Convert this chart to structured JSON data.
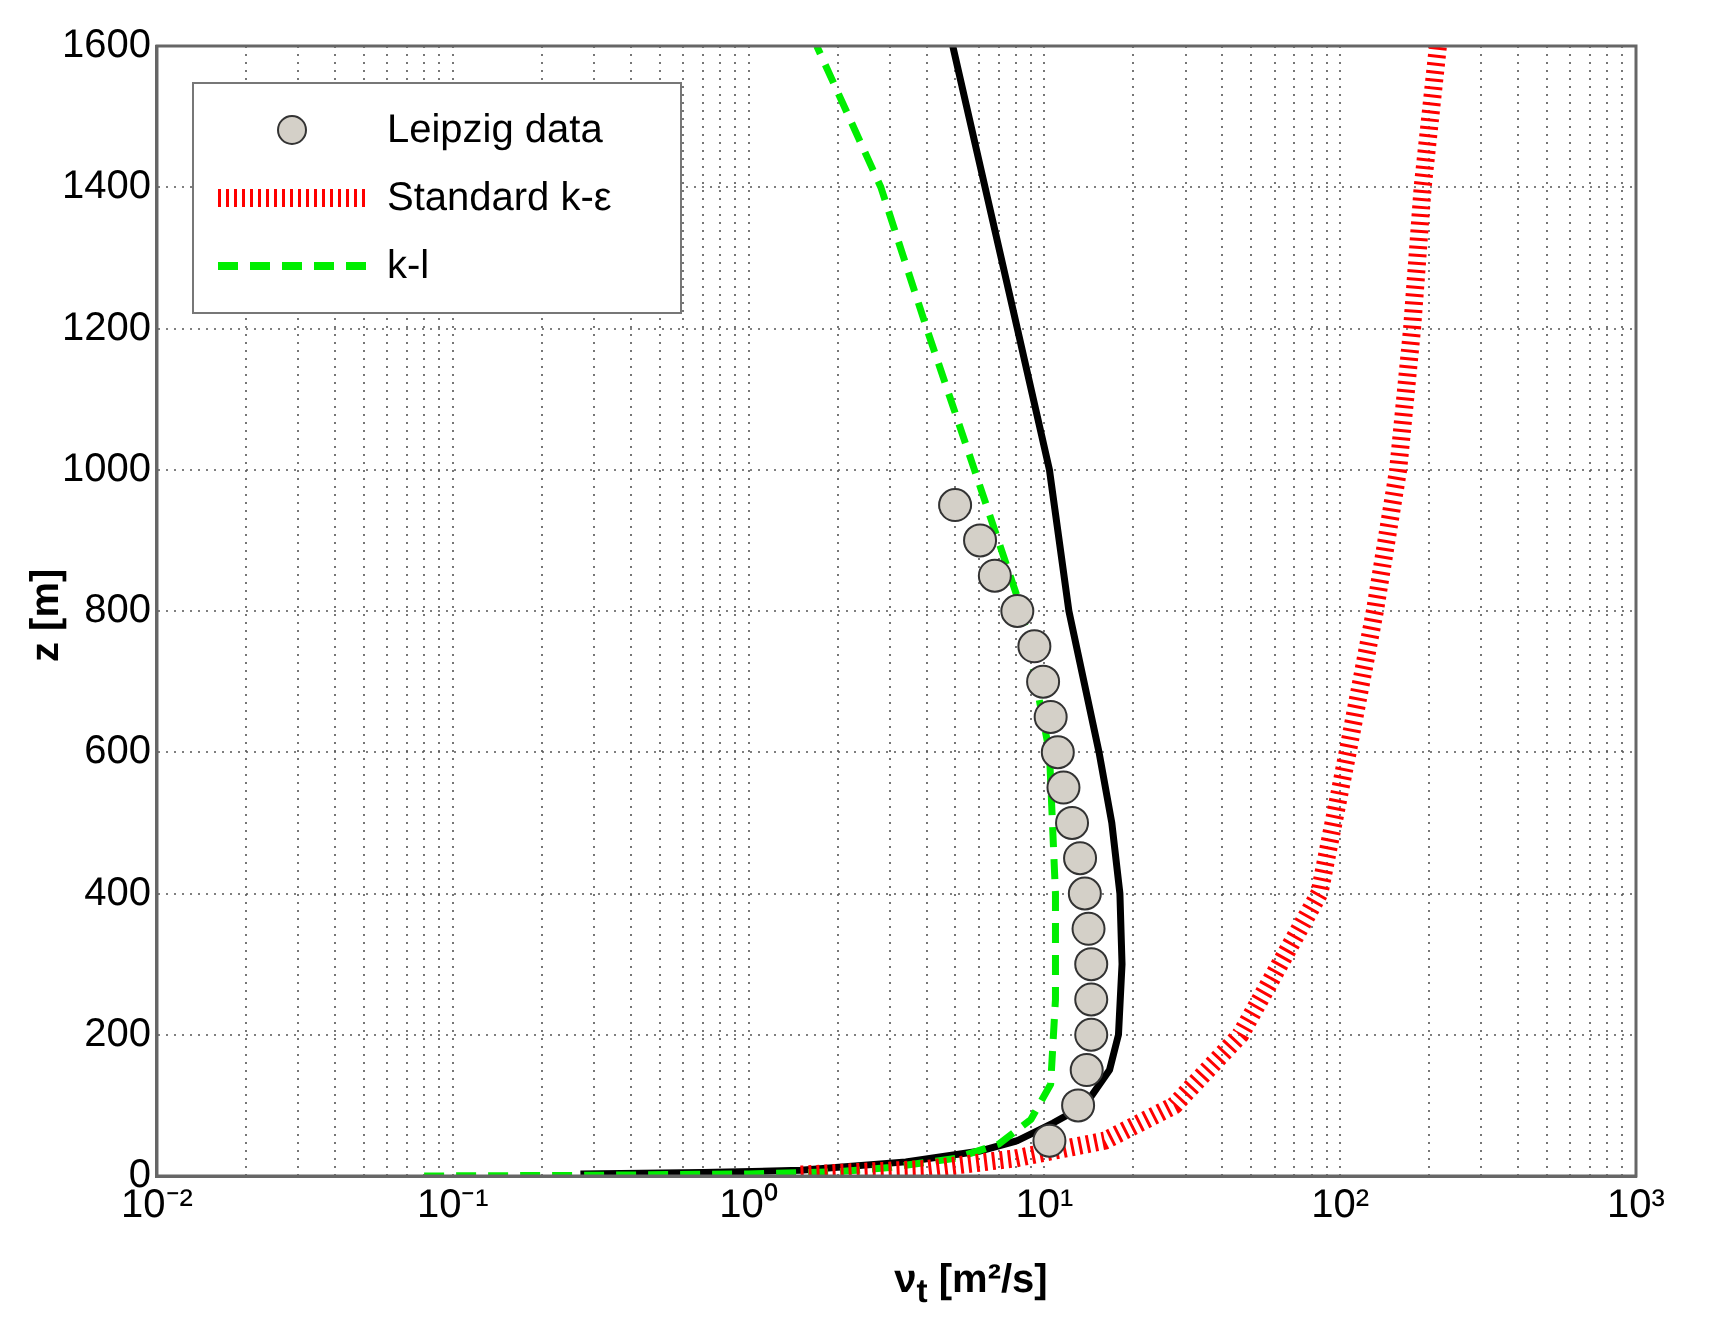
{
  "chart_data": {
    "type": "line",
    "xlabel": "ν$_{t}$ [m²/s]",
    "ylabel": "z [m]",
    "log": "x",
    "grid": true,
    "legend": "top left",
    "xlim": [
      0.01,
      1000
    ],
    "ylim": [
      0,
      1600
    ],
    "xticks": [
      {
        "value": 0.01,
        "label": "10⁻²"
      },
      {
        "value": 0.02,
        "label": null
      },
      {
        "value": 0.03,
        "label": null
      },
      {
        "value": 0.04,
        "label": null
      },
      {
        "value": 0.05,
        "label": null
      },
      {
        "value": 0.06,
        "label": null
      },
      {
        "value": 0.07,
        "label": null
      },
      {
        "value": 0.08,
        "label": null
      },
      {
        "value": 0.09,
        "label": null
      },
      {
        "value": 0.1,
        "label": "10⁻¹"
      },
      {
        "value": 0.2,
        "label": null
      },
      {
        "value": 0.3,
        "label": null
      },
      {
        "value": 0.4,
        "label": null
      },
      {
        "value": 0.5,
        "label": null
      },
      {
        "value": 0.6,
        "label": null
      },
      {
        "value": 0.7,
        "label": null
      },
      {
        "value": 0.8,
        "label": null
      },
      {
        "value": 0.9,
        "label": null
      },
      {
        "value": 1,
        "label": "10⁰"
      },
      {
        "value": 2,
        "label": null
      },
      {
        "value": 3,
        "label": null
      },
      {
        "value": 4,
        "label": null
      },
      {
        "value": 5,
        "label": null
      },
      {
        "value": 6,
        "label": null
      },
      {
        "value": 7,
        "label": null
      },
      {
        "value": 8,
        "label": null
      },
      {
        "value": 9,
        "label": null
      },
      {
        "value": 10,
        "label": "10¹"
      },
      {
        "value": 20,
        "label": null
      },
      {
        "value": 30,
        "label": null
      },
      {
        "value": 40,
        "label": null
      },
      {
        "value": 50,
        "label": null
      },
      {
        "value": 60,
        "label": null
      },
      {
        "value": 70,
        "label": null
      },
      {
        "value": 80,
        "label": null
      },
      {
        "value": 90,
        "label": null
      },
      {
        "value": 100,
        "label": "10²"
      },
      {
        "value": 200,
        "label": null
      },
      {
        "value": 300,
        "label": null
      },
      {
        "value": 400,
        "label": null
      },
      {
        "value": 500,
        "label": null
      },
      {
        "value": 600,
        "label": null
      },
      {
        "value": 700,
        "label": null
      },
      {
        "value": 800,
        "label": null
      },
      {
        "value": 900,
        "label": null
      },
      {
        "value": 1000,
        "label": "10³"
      }
    ],
    "yticks": [
      0,
      200,
      400,
      600,
      800,
      1000,
      1200,
      1400,
      1600
    ],
    "series": [
      {
        "name": "Leipzig data",
        "type": "scatter",
        "marker": "circle",
        "color": "#d4d0c8",
        "x": [
          10.4,
          13.0,
          13.9,
          14.4,
          14.4,
          14.4,
          14.1,
          13.7,
          13.2,
          12.4,
          11.6,
          11.1,
          10.5,
          9.9,
          9.25,
          8.1,
          6.8,
          6.06,
          4.99
        ],
        "values": [
          50,
          100,
          150,
          200,
          250,
          300,
          350,
          400,
          450,
          500,
          550,
          600,
          650,
          700,
          750,
          800,
          850,
          900,
          950
        ]
      },
      {
        "name": "Standard k-ε",
        "line_style": "dotted",
        "color": "#ff0000",
        "x": [
          1.5,
          4,
          8,
          16,
          27.5,
          46,
          85,
          106,
          131,
          157,
          175,
          190,
          214
        ],
        "values": [
          2,
          10,
          25,
          50,
          100,
          200,
          400,
          600,
          800,
          1000,
          1200,
          1400,
          1600
        ]
      },
      {
        "name": "k-l",
        "line_style": "dashed",
        "color": "#00ee00",
        "x": [
          0.08,
          0.3,
          1,
          2,
          3,
          5,
          7,
          9,
          10.5,
          10.9,
          10.9,
          10.4,
          8.4,
          5.8,
          4.0,
          2.8,
          1.7
        ],
        "values": [
          0,
          1,
          3,
          6,
          12,
          25,
          45,
          80,
          130,
          250,
          400,
          600,
          800,
          1000,
          1200,
          1400,
          1600
        ]
      },
      {
        "line_style": "solid",
        "color": "#000000",
        "x": [
          0.27,
          0.7,
          1.5,
          3.4,
          6,
          8.1,
          10.7,
          13.7,
          16.6,
          17.8,
          18.3,
          18,
          16.9,
          15.3,
          12.1,
          10.4,
          8.1,
          6.3,
          4.9
        ],
        "values": [
          3,
          5,
          8,
          20,
          35,
          50,
          75,
          100,
          150,
          200,
          300,
          400,
          500,
          600,
          800,
          1000,
          1200,
          1400,
          1600
        ]
      }
    ]
  }
}
